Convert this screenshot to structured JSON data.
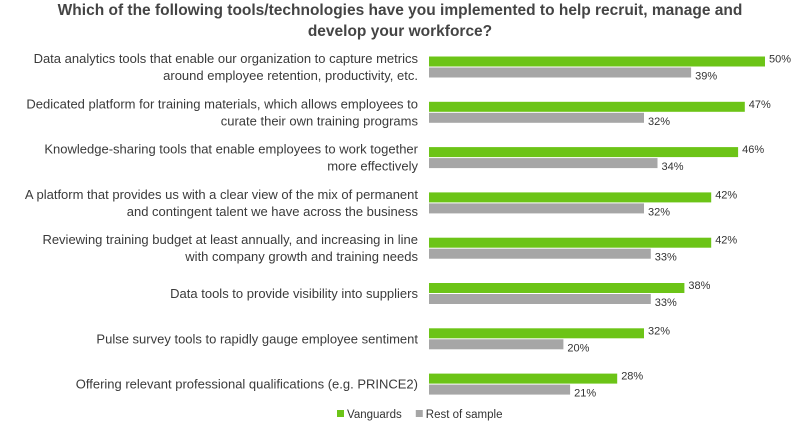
{
  "chart_data": {
    "type": "bar",
    "orientation": "horizontal",
    "title": "Which of the following tools/technologies have you implemented to help recruit, manage and develop your workforce?",
    "categories": [
      [
        "Data analytics tools that enable our organization to capture metrics",
        "around employee retention, productivity, etc."
      ],
      [
        "Dedicated platform for training materials, which allows employees to",
        "curate their own training programs"
      ],
      [
        "Knowledge-sharing tools that enable employees to work together",
        "more effectively"
      ],
      [
        "A platform that provides us with a clear view of the mix of permanent",
        "and contingent talent we have across the business"
      ],
      [
        "Reviewing training budget at least annually, and increasing in line",
        "with company growth and training needs"
      ],
      [
        "Data tools to provide visibility into suppliers"
      ],
      [
        "Pulse survey tools to rapidly gauge employee sentiment"
      ],
      [
        "Offering relevant professional qualifications (e.g. PRINCE2)"
      ]
    ],
    "series": [
      {
        "name": "Vanguards",
        "color": "#6cc417",
        "values": [
          50,
          47,
          46,
          42,
          42,
          38,
          32,
          28
        ]
      },
      {
        "name": "Rest of sample",
        "color": "#a6a6a6",
        "values": [
          39,
          32,
          34,
          32,
          33,
          33,
          20,
          21
        ]
      }
    ],
    "value_suffix": "%",
    "xlim": [
      0,
      50
    ],
    "legend_position": "bottom"
  }
}
